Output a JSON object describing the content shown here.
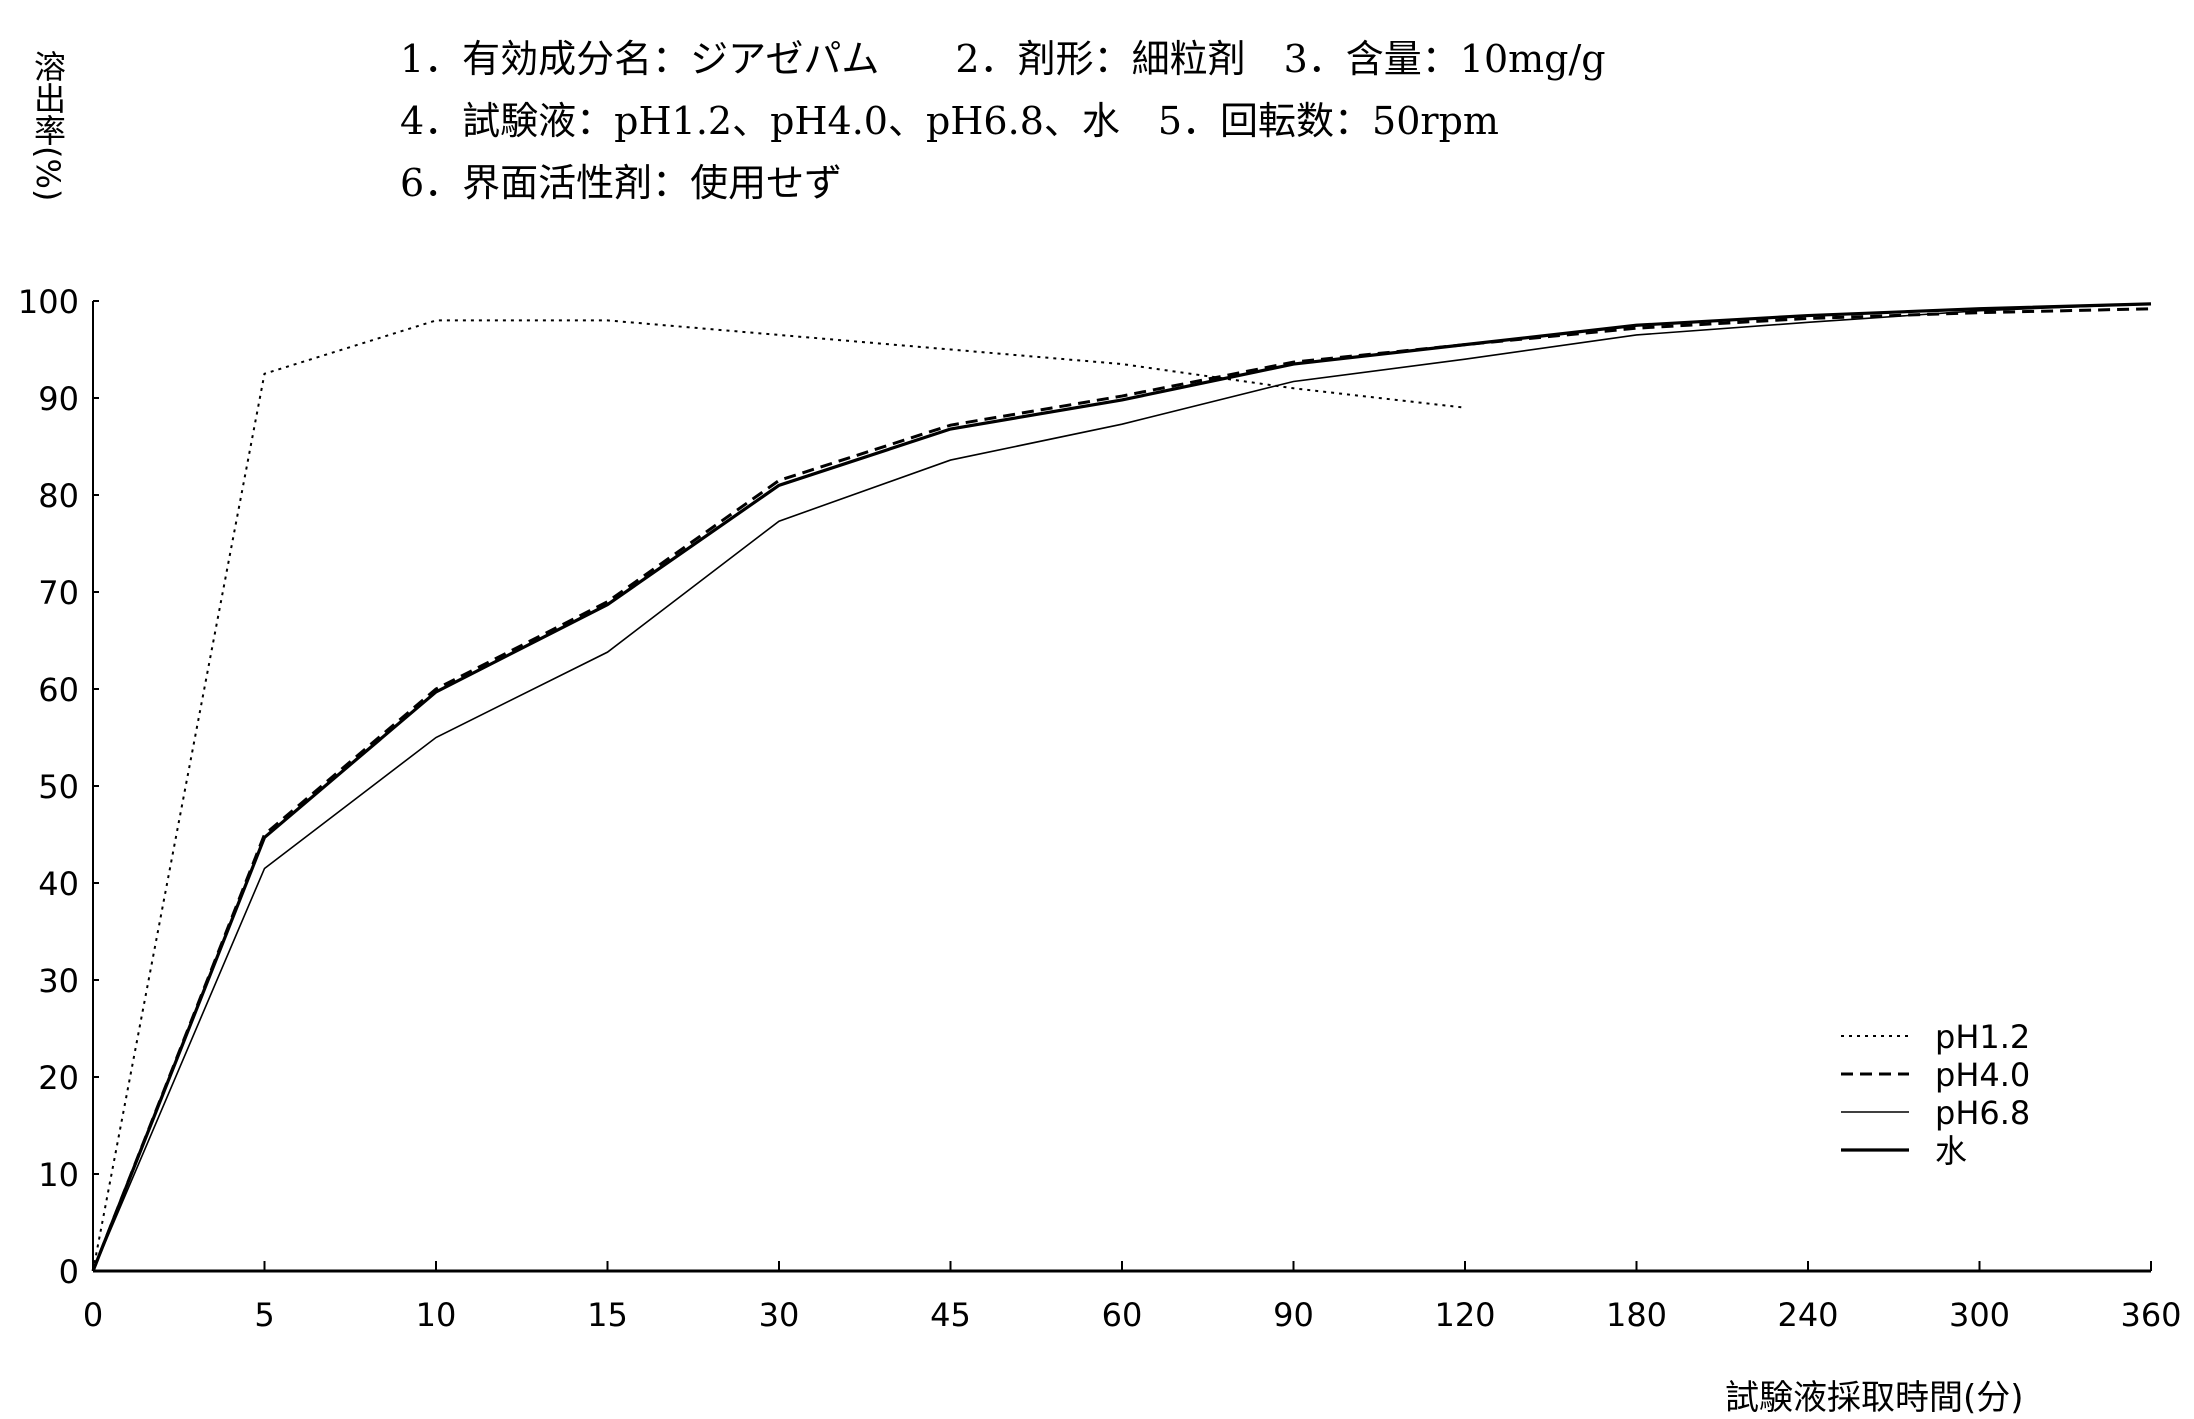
{
  "info_lines": [
    "1．有効成分名：ジアゼパム　　2．剤形：細粒剤　3．含量：10mg/g",
    "4．試験液：pH1.2、pH4.0、pH6.8、水　5．回転数：50rpm",
    "6．界面活性剤：使用せず"
  ],
  "chart_data": {
    "type": "line",
    "title": "",
    "xlabel": "試験液採取時間(分)",
    "ylabel": "溶出率(%)",
    "categories": [
      "0",
      "5",
      "10",
      "15",
      "30",
      "45",
      "60",
      "90",
      "120",
      "180",
      "240",
      "300",
      "360"
    ],
    "yticks": [
      0,
      10,
      20,
      30,
      40,
      50,
      60,
      70,
      80,
      90,
      100
    ],
    "ylim": [
      0,
      100
    ],
    "grid": false,
    "legend_position": "bottom-right",
    "series": [
      {
        "name": "pH1.2",
        "style": "dotted",
        "values": [
          0,
          92.5,
          98,
          98,
          96.5,
          95,
          93.5,
          91,
          89,
          null,
          null,
          null,
          null
        ]
      },
      {
        "name": "pH4.0",
        "style": "dashed",
        "values": [
          0,
          45,
          60,
          69,
          81.5,
          87.2,
          90.2,
          93.7,
          95.5,
          97.2,
          98.2,
          98.8,
          99.2
        ]
      },
      {
        "name": "pH6.8",
        "style": "thin",
        "values": [
          0,
          41.5,
          55,
          63.8,
          77.3,
          83.6,
          87.3,
          91.7,
          94,
          96.5,
          97.8,
          99,
          99.7
        ]
      },
      {
        "name": "水",
        "style": "thick",
        "values": [
          0,
          44.7,
          59.7,
          68.7,
          81,
          86.8,
          89.8,
          93.5,
          95.5,
          97.5,
          98.5,
          99.2,
          99.7
        ]
      }
    ]
  }
}
